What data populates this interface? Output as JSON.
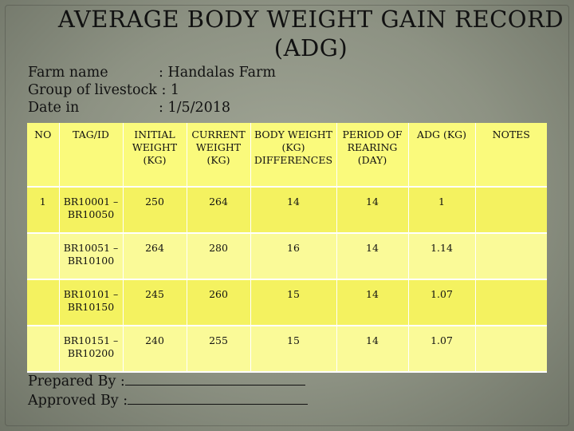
{
  "title_line1": "AVERAGE BODY WEIGHT GAIN RECORD",
  "title_line2": "(ADG)",
  "info": {
    "farm_label": "Farm name",
    "farm_value": ": Handalas Farm",
    "group_label": "Group of livestock",
    "group_value": ": 1",
    "date_label": "Date in",
    "date_value": ": 1/5/2018"
  },
  "table": {
    "headers": {
      "no": "NO",
      "tag": "TAG/ID",
      "initial": "INITIAL WEIGHT (KG)",
      "current": "CURRENT WEIGHT (KG)",
      "diff": "BODY WEIGHT (KG) DIFFERENCES",
      "period": "PERIOD OF REARING (DAY)",
      "adg": "ADG (KG)",
      "notes": "NOTES"
    },
    "rows": [
      {
        "no": "1",
        "tag": "BR10001 – BR10050",
        "initial": "250",
        "current": "264",
        "diff": "14",
        "period": "14",
        "adg": "1",
        "notes": ""
      },
      {
        "no": "",
        "tag": "BR10051 – BR10100",
        "initial": "264",
        "current": "280",
        "diff": "16",
        "period": "14",
        "adg": "1.14",
        "notes": ""
      },
      {
        "no": "",
        "tag": "BR10101 – BR10150",
        "initial": "245",
        "current": "260",
        "diff": "15",
        "period": "14",
        "adg": "1.07",
        "notes": ""
      },
      {
        "no": "",
        "tag": "BR10151 – BR10200",
        "initial": "240",
        "current": "255",
        "diff": "15",
        "period": "14",
        "adg": "1.07",
        "notes": ""
      }
    ]
  },
  "signatures": {
    "prepared_label": "Prepared By :",
    "approved_label": "Approved By :"
  }
}
